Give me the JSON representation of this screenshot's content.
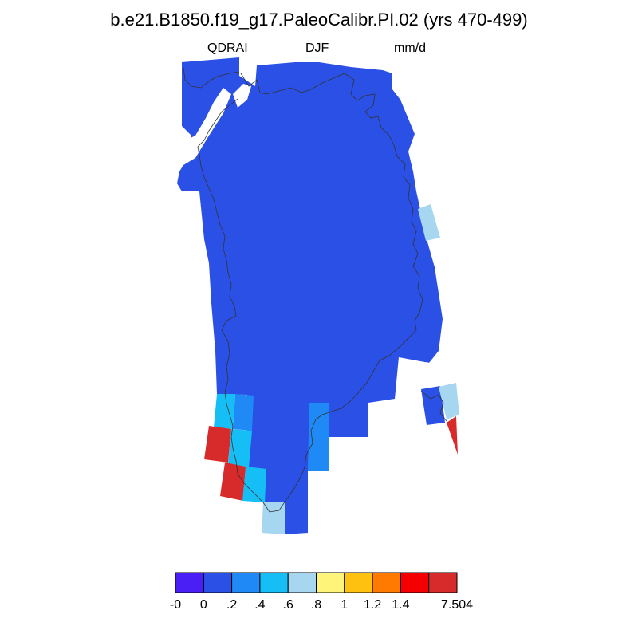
{
  "title": "b.e21.B1850.f19_g17.PaleoCalibr.PI.02 (yrs 470-499)",
  "left_label": "QDRAI",
  "center_label": "DJF",
  "right_label": "mm/d",
  "colorbar": {
    "colors": [
      "#4a1ff5",
      "#2b50e6",
      "#1f8af5",
      "#15bff5",
      "#a6d6f0",
      "#fff47a",
      "#ffc10f",
      "#ff7a00",
      "#f50000",
      "#d72a2a"
    ],
    "tick_labels": [
      "-0",
      "0",
      ".2",
      ".4",
      ".6",
      ".8",
      "1",
      "1.2",
      "1.4",
      "7.504"
    ]
  },
  "colors": {
    "ice_cover": "#2b50e6",
    "coastline": "#333333"
  }
}
